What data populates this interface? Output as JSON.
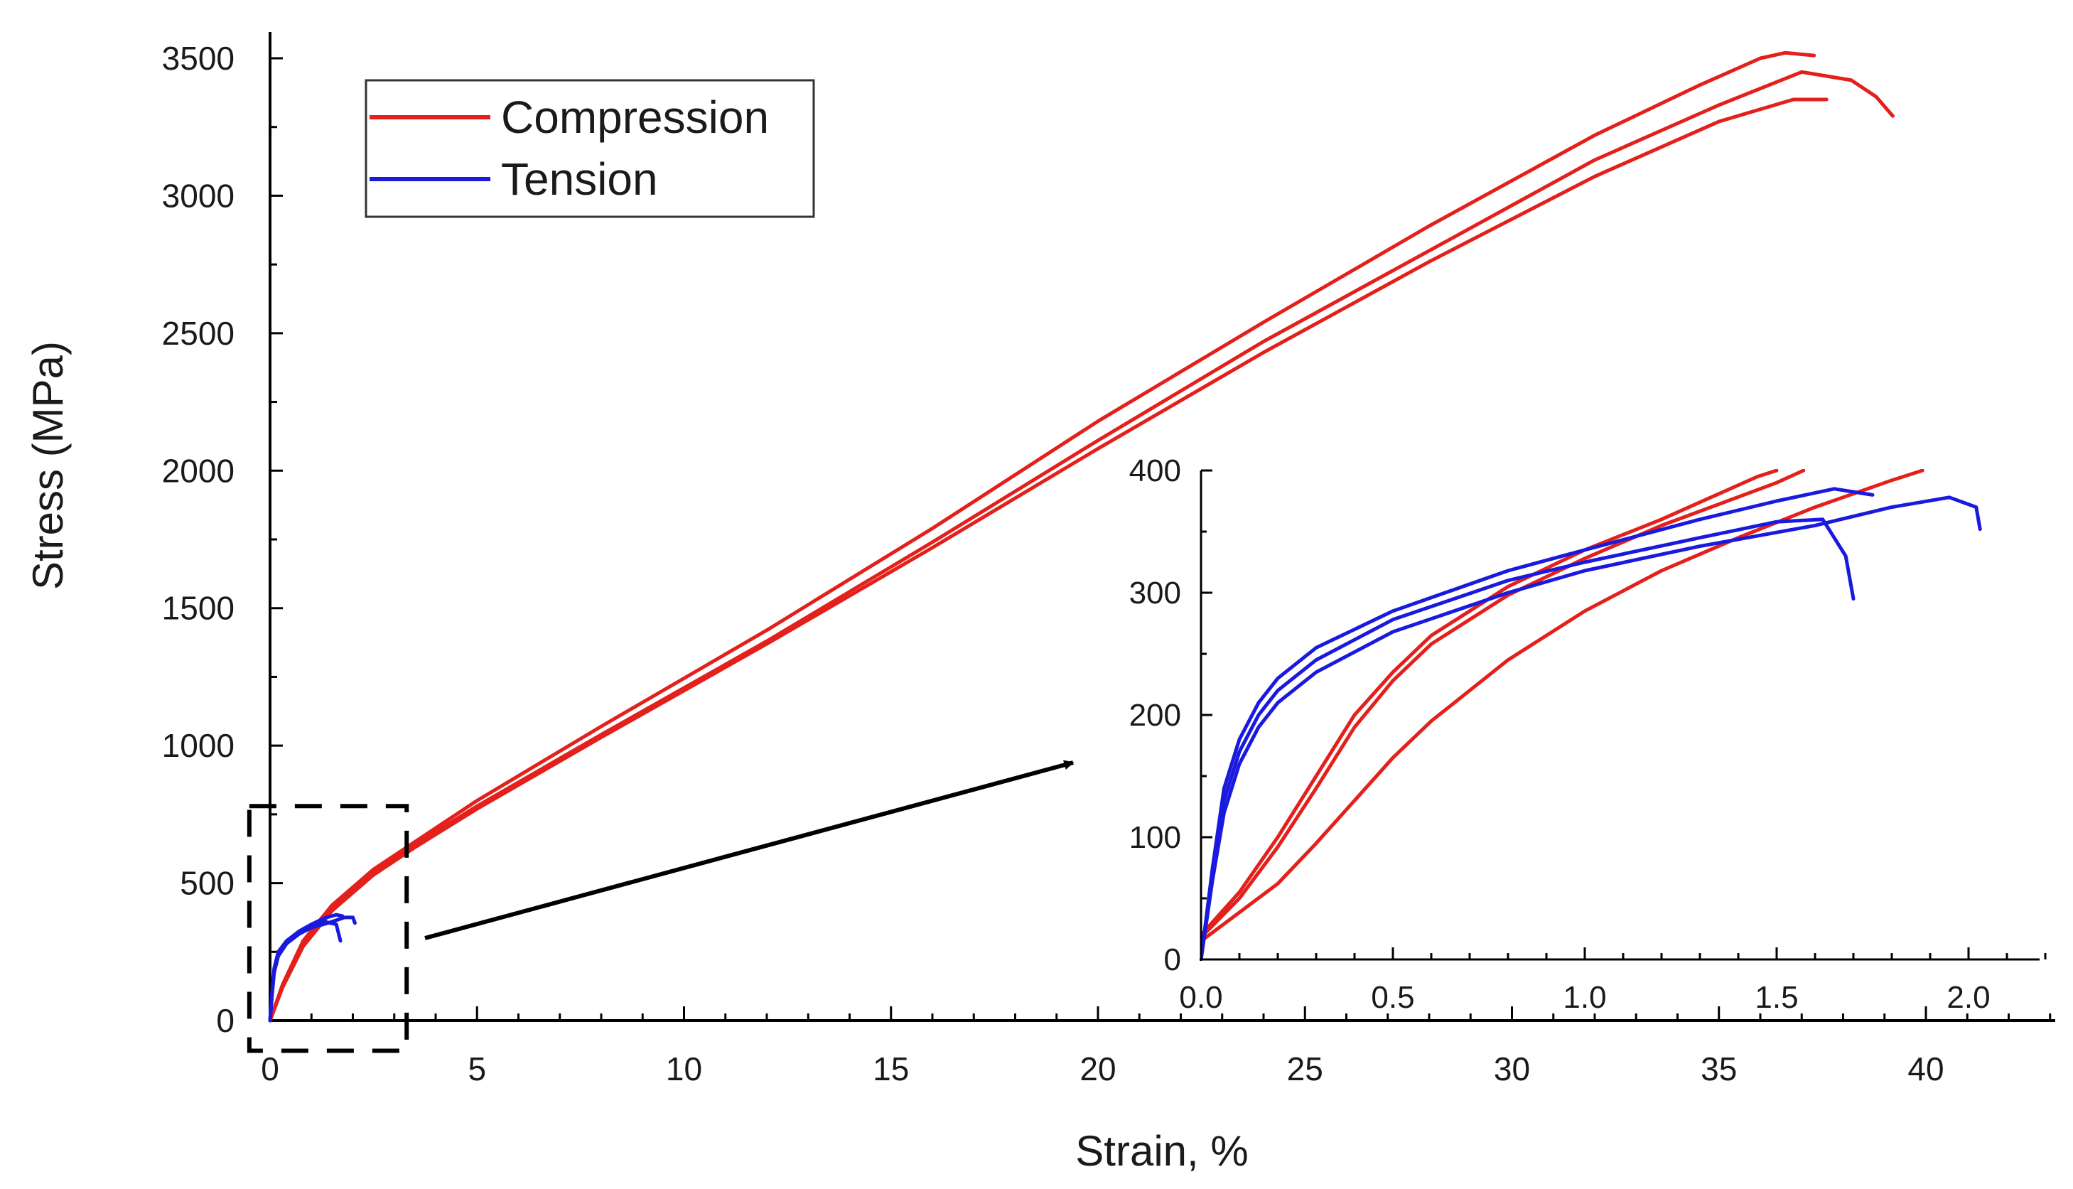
{
  "chart_data": [
    {
      "type": "line",
      "xlabel": "Strain, %",
      "ylabel": "Stress (MPa)",
      "xlim": [
        0,
        43
      ],
      "ylim": [
        0,
        3600
      ],
      "xticks": [
        0,
        5,
        10,
        15,
        20,
        25,
        30,
        35,
        40
      ],
      "yticks": [
        0,
        500,
        1000,
        1500,
        2000,
        2500,
        3000,
        3500
      ],
      "legend": {
        "position": "top-left",
        "entries": [
          {
            "label": "Compression",
            "color": "#e3201b"
          },
          {
            "label": "Tension",
            "color": "#1a1adf"
          }
        ]
      },
      "series": [
        {
          "name": "Compression",
          "color": "#e3201b",
          "x": [
            0,
            0.3,
            0.8,
            1.5,
            2.5,
            3.5,
            5,
            8,
            12,
            16,
            20,
            24,
            28,
            32,
            34.5,
            36,
            36.6,
            37.3
          ],
          "y": [
            0,
            130,
            290,
            420,
            550,
            650,
            800,
            1070,
            1420,
            1790,
            2180,
            2540,
            2890,
            3220,
            3400,
            3500,
            3520,
            3510
          ]
        },
        {
          "name": "Compression",
          "color": "#e3201b",
          "x": [
            0,
            0.3,
            0.8,
            1.5,
            2.5,
            3.5,
            5,
            8,
            12,
            16,
            20,
            24,
            28,
            32,
            35,
            37,
            38.2,
            38.8,
            39.2
          ],
          "y": [
            0,
            125,
            280,
            410,
            540,
            640,
            780,
            1040,
            1380,
            1740,
            2110,
            2470,
            2800,
            3130,
            3330,
            3450,
            3420,
            3360,
            3290
          ]
        },
        {
          "name": "Compression",
          "color": "#e3201b",
          "x": [
            0,
            0.3,
            0.8,
            1.5,
            2.5,
            3.5,
            5,
            8,
            12,
            16,
            20,
            24,
            28,
            32,
            35,
            36.8,
            37.6
          ],
          "y": [
            0,
            120,
            270,
            400,
            530,
            630,
            770,
            1030,
            1370,
            1720,
            2080,
            2430,
            2760,
            3070,
            3270,
            3350,
            3350
          ]
        },
        {
          "name": "Tension",
          "color": "#1a1adf",
          "x": [
            0,
            0.05,
            0.1,
            0.2,
            0.4,
            0.7,
            1.0,
            1.3,
            1.6,
            1.7
          ],
          "y": [
            0,
            100,
            180,
            240,
            285,
            320,
            345,
            360,
            350,
            290
          ]
        },
        {
          "name": "Tension",
          "color": "#1a1adf",
          "x": [
            0,
            0.05,
            0.1,
            0.2,
            0.4,
            0.7,
            1.0,
            1.3,
            1.6,
            1.75
          ],
          "y": [
            0,
            105,
            190,
            250,
            290,
            325,
            350,
            372,
            385,
            380
          ]
        },
        {
          "name": "Tension",
          "color": "#1a1adf",
          "x": [
            0,
            0.05,
            0.1,
            0.2,
            0.4,
            0.7,
            1.0,
            1.4,
            1.8,
            2.0,
            2.05
          ],
          "y": [
            0,
            95,
            175,
            235,
            280,
            315,
            338,
            355,
            375,
            375,
            355
          ]
        }
      ],
      "annotations": {
        "zoom_box": {
          "x_range": [
            -0.5,
            3.3
          ],
          "y_range": [
            -110,
            780
          ]
        },
        "arrow": "points from zoom box to inset"
      }
    },
    {
      "type": "line",
      "role": "inset",
      "xlim": [
        0,
        2.25
      ],
      "ylim": [
        0,
        400
      ],
      "xticks": [
        0.0,
        0.5,
        1.0,
        1.5,
        2.0
      ],
      "xtick_labels": [
        "0.0",
        "0.5",
        "1.0",
        "1.5",
        "2.0"
      ],
      "yticks": [
        0,
        100,
        200,
        300,
        400
      ],
      "series": [
        {
          "name": "Compression",
          "color": "#e3201b",
          "x": [
            0,
            0.1,
            0.2,
            0.3,
            0.4,
            0.5,
            0.6,
            0.8,
            1.0,
            1.2,
            1.45,
            1.5
          ],
          "y": [
            20,
            55,
            100,
            150,
            200,
            235,
            265,
            305,
            335,
            360,
            395,
            400
          ]
        },
        {
          "name": "Compression",
          "color": "#e3201b",
          "x": [
            0,
            0.1,
            0.2,
            0.3,
            0.4,
            0.5,
            0.6,
            0.8,
            1.0,
            1.2,
            1.5,
            1.57
          ],
          "y": [
            18,
            50,
            92,
            140,
            190,
            228,
            258,
            298,
            328,
            355,
            390,
            400
          ]
        },
        {
          "name": "Compression",
          "color": "#e3201b",
          "x": [
            0,
            0.2,
            0.3,
            0.4,
            0.5,
            0.6,
            0.8,
            1.0,
            1.2,
            1.4,
            1.6,
            1.8,
            1.88
          ],
          "y": [
            15,
            62,
            95,
            130,
            165,
            195,
            245,
            285,
            318,
            345,
            370,
            392,
            400
          ]
        },
        {
          "name": "Tension",
          "color": "#1a1adf",
          "x": [
            0,
            0.03,
            0.06,
            0.1,
            0.15,
            0.2,
            0.3,
            0.5,
            0.8,
            1.0,
            1.3,
            1.5,
            1.62,
            1.68,
            1.7
          ],
          "y": [
            0,
            70,
            130,
            170,
            200,
            220,
            245,
            278,
            310,
            325,
            345,
            358,
            360,
            330,
            295
          ]
        },
        {
          "name": "Tension",
          "color": "#1a1adf",
          "x": [
            0,
            0.03,
            0.06,
            0.1,
            0.15,
            0.2,
            0.3,
            0.5,
            0.8,
            1.0,
            1.3,
            1.5,
            1.65,
            1.75
          ],
          "y": [
            0,
            75,
            140,
            180,
            210,
            230,
            255,
            285,
            318,
            335,
            360,
            375,
            385,
            380
          ]
        },
        {
          "name": "Tension",
          "color": "#1a1adf",
          "x": [
            0,
            0.03,
            0.06,
            0.1,
            0.15,
            0.2,
            0.3,
            0.5,
            0.8,
            1.0,
            1.3,
            1.6,
            1.8,
            1.95,
            2.02,
            2.03
          ],
          "y": [
            0,
            65,
            120,
            160,
            190,
            210,
            235,
            268,
            300,
            318,
            338,
            355,
            370,
            378,
            370,
            352
          ]
        }
      ]
    }
  ]
}
